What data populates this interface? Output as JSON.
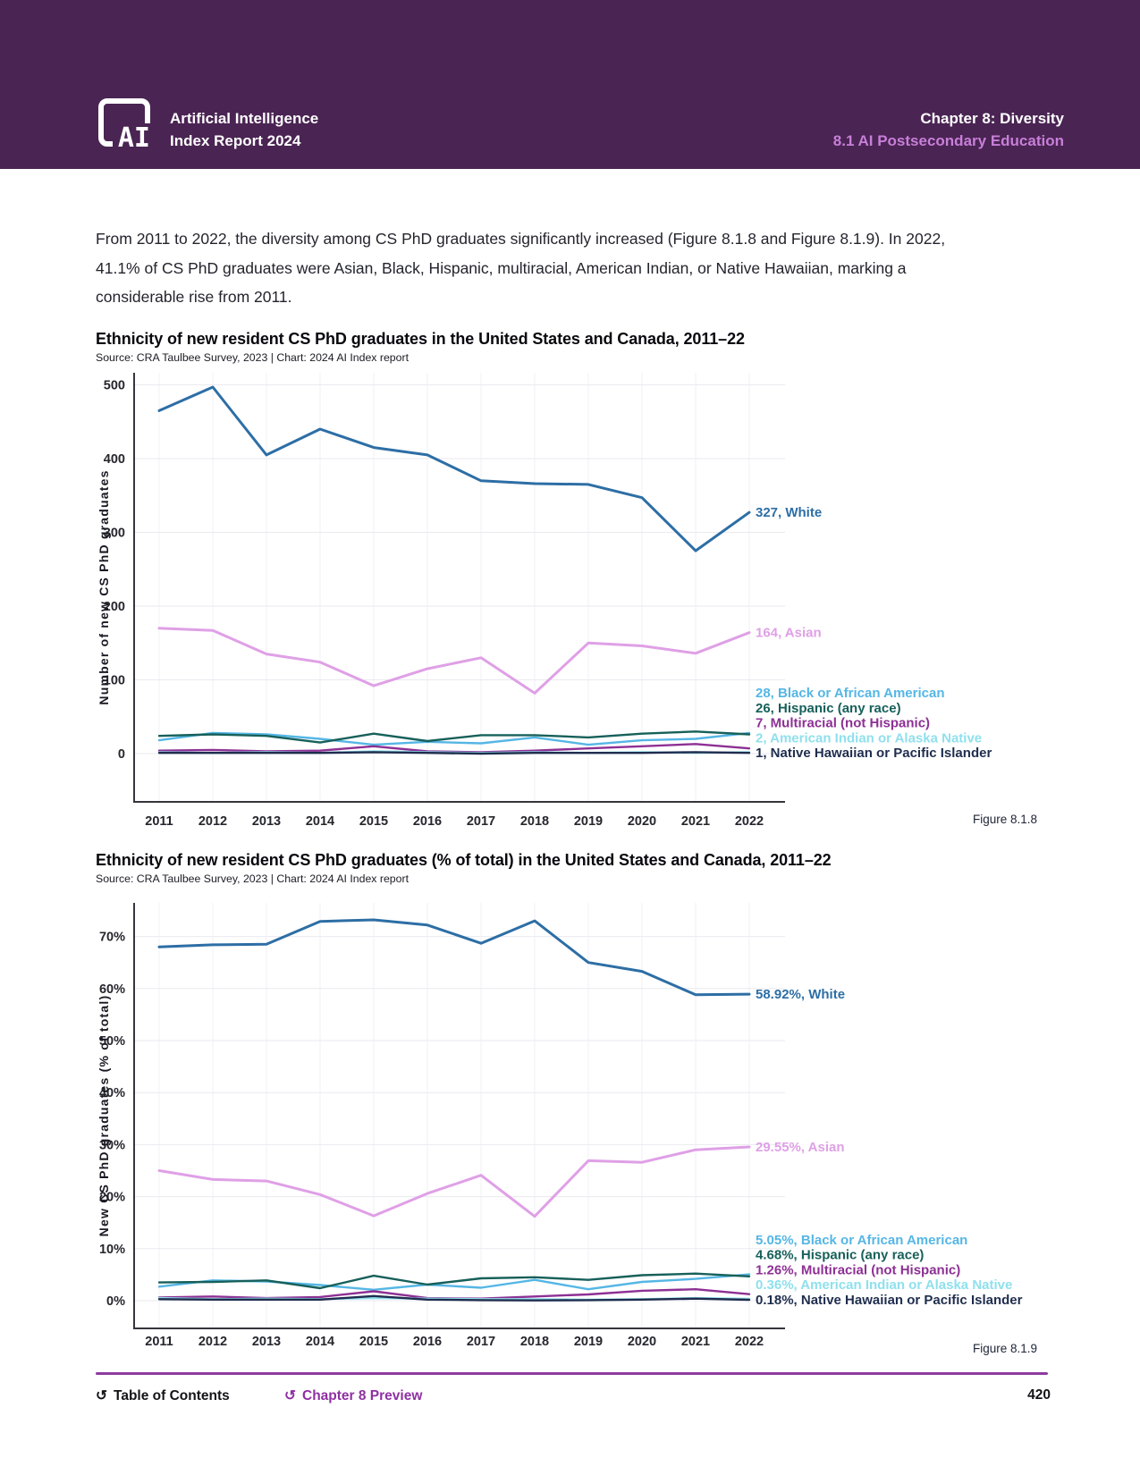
{
  "header": {
    "logo_text": "AI",
    "brand_line1": "Artificial Intelligence",
    "brand_line2": "Index Report 2024",
    "chapter": "Chapter 8: Diversity",
    "section": "8.1 AI Postsecondary Education"
  },
  "intro_paragraph": "From 2011 to 2022, the diversity among CS PhD graduates significantly increased (Figure 8.1.8 and Figure 8.1.9). In 2022, 41.1% of CS PhD graduates were Asian, Black, Hispanic, multiracial, American Indian, or Native Hawaiian, marking a considerable rise from 2011.",
  "colors": {
    "banner_background": "#4a2453",
    "header_section_text": "#c77fd8",
    "footer_rule": "#8e3b9f",
    "footer_link": "#8f2fa2",
    "gridline": "#eaeaf0",
    "axis": "#35353d"
  },
  "chart_data": [
    {
      "type": "line",
      "title": "Ethnicity of new resident CS PhD graduates in the United States and Canada, 2011–22",
      "source": "Source: CRA Taulbee Survey, 2023 | Chart: 2024 AI Index report",
      "figure_caption": "Figure 8.1.8",
      "ylabel": "Number of new CS PhD graduates",
      "x": [
        "2011",
        "2012",
        "2013",
        "2014",
        "2015",
        "2016",
        "2017",
        "2018",
        "2019",
        "2020",
        "2021",
        "2022"
      ],
      "ylim": [
        0,
        500
      ],
      "yticks": [
        0,
        100,
        200,
        300,
        400,
        500
      ],
      "ytick_labels": [
        "0",
        "100",
        "200",
        "300",
        "400",
        "500"
      ],
      "grid": true,
      "legend_position": "right-end-labels",
      "series": [
        {
          "name": "White",
          "color": "#2d6ea5",
          "end_label": "327, White",
          "values": [
            465,
            497,
            405,
            440,
            415,
            405,
            370,
            366,
            365,
            347,
            275,
            327
          ]
        },
        {
          "name": "Asian",
          "color": "#dfa0e6",
          "end_label": "164, Asian",
          "values": [
            170,
            167,
            135,
            124,
            92,
            115,
            130,
            82,
            150,
            146,
            136,
            164
          ]
        },
        {
          "name": "Black or African American",
          "color": "#55b6e5",
          "end_label": "28, Black or African American",
          "values": [
            18,
            28,
            26,
            20,
            12,
            16,
            14,
            22,
            12,
            18,
            20,
            28
          ]
        },
        {
          "name": "Hispanic (any race)",
          "color": "#17605a",
          "end_label": "26, Hispanic (any race)",
          "values": [
            24,
            26,
            24,
            15,
            27,
            17,
            25,
            25,
            22,
            27,
            30,
            26
          ]
        },
        {
          "name": "Multiracial (not Hispanic)",
          "color": "#8d3094",
          "end_label": "7, Multiracial (not Hispanic)",
          "values": [
            4,
            5,
            3,
            4,
            10,
            3,
            2,
            4,
            7,
            10,
            13,
            7
          ]
        },
        {
          "name": "American Indian or Alaska Native",
          "color": "#8fe0ed",
          "end_label": "2, American Indian or Alaska Native",
          "values": [
            2,
            1,
            2,
            1,
            3,
            2,
            1,
            2,
            1,
            2,
            1,
            2
          ]
        },
        {
          "name": "Native Hawaiian or Pacific Islander",
          "color": "#1f2d4e",
          "end_label": "1, Native Hawaiian or Pacific Islander",
          "values": [
            1,
            1,
            1,
            1,
            2,
            1,
            0,
            1,
            1,
            1,
            2,
            1
          ]
        }
      ]
    },
    {
      "type": "line",
      "title": "Ethnicity of new resident CS PhD graduates (% of total) in the United States and Canada, 2011–22",
      "source": "Source: CRA Taulbee Survey, 2023 | Chart: 2024 AI Index report",
      "figure_caption": "Figure 8.1.9",
      "ylabel": "New CS PhD graduates (% of total)",
      "x": [
        "2011",
        "2012",
        "2013",
        "2014",
        "2015",
        "2016",
        "2017",
        "2018",
        "2019",
        "2020",
        "2021",
        "2022"
      ],
      "ylim": [
        0,
        70
      ],
      "yticks": [
        0,
        10,
        20,
        30,
        40,
        50,
        60,
        70
      ],
      "ytick_labels": [
        "0%",
        "10%",
        "20%",
        "30%",
        "40%",
        "50%",
        "60%",
        "70%"
      ],
      "grid": true,
      "legend_position": "right-end-labels",
      "series": [
        {
          "name": "White",
          "color": "#2d6ea5",
          "end_label": "58.92%, White",
          "values": [
            68.0,
            68.4,
            68.5,
            72.9,
            73.2,
            72.2,
            68.7,
            73.0,
            65.0,
            63.3,
            58.8,
            58.92
          ]
        },
        {
          "name": "Asian",
          "color": "#dfa0e6",
          "end_label": "29.55%, Asian",
          "values": [
            25.0,
            23.3,
            23.0,
            20.4,
            16.3,
            20.6,
            24.1,
            16.2,
            26.9,
            26.6,
            29.0,
            29.55
          ]
        },
        {
          "name": "Black or African American",
          "color": "#55b6e5",
          "end_label": "5.05%, Black or African American",
          "values": [
            2.7,
            3.9,
            3.7,
            3.0,
            2.1,
            3.1,
            2.5,
            4.0,
            2.2,
            3.6,
            4.2,
            5.05
          ]
        },
        {
          "name": "Hispanic (any race)",
          "color": "#17605a",
          "end_label": "4.68%, Hispanic (any race)",
          "values": [
            3.5,
            3.6,
            3.9,
            2.4,
            4.8,
            3.1,
            4.3,
            4.5,
            4.0,
            4.9,
            5.2,
            4.68
          ]
        },
        {
          "name": "Multiracial (not Hispanic)",
          "color": "#8d3094",
          "end_label": "1.26%, Multiracial (not Hispanic)",
          "values": [
            0.6,
            0.8,
            0.5,
            0.7,
            1.8,
            0.5,
            0.4,
            0.8,
            1.2,
            1.9,
            2.2,
            1.26
          ]
        },
        {
          "name": "American Indian or Alaska Native",
          "color": "#8fe0ed",
          "end_label": "0.36%, American Indian or Alaska Native",
          "values": [
            0.5,
            0.3,
            0.4,
            0.3,
            0.5,
            0.4,
            0.3,
            0.3,
            0.2,
            0.3,
            0.5,
            0.36
          ]
        },
        {
          "name": "Native Hawaiian or Pacific Islander",
          "color": "#1f2d4e",
          "end_label": "0.18%, Native Hawaiian or Pacific Islander",
          "values": [
            0.3,
            0.2,
            0.2,
            0.2,
            0.9,
            0.2,
            0.1,
            0.05,
            0.1,
            0.2,
            0.4,
            0.18
          ]
        }
      ]
    }
  ],
  "footer": {
    "toc_label": "Table of Contents",
    "preview_label": "Chapter 8 Preview",
    "back_icon": "↺",
    "page_number": "420"
  }
}
